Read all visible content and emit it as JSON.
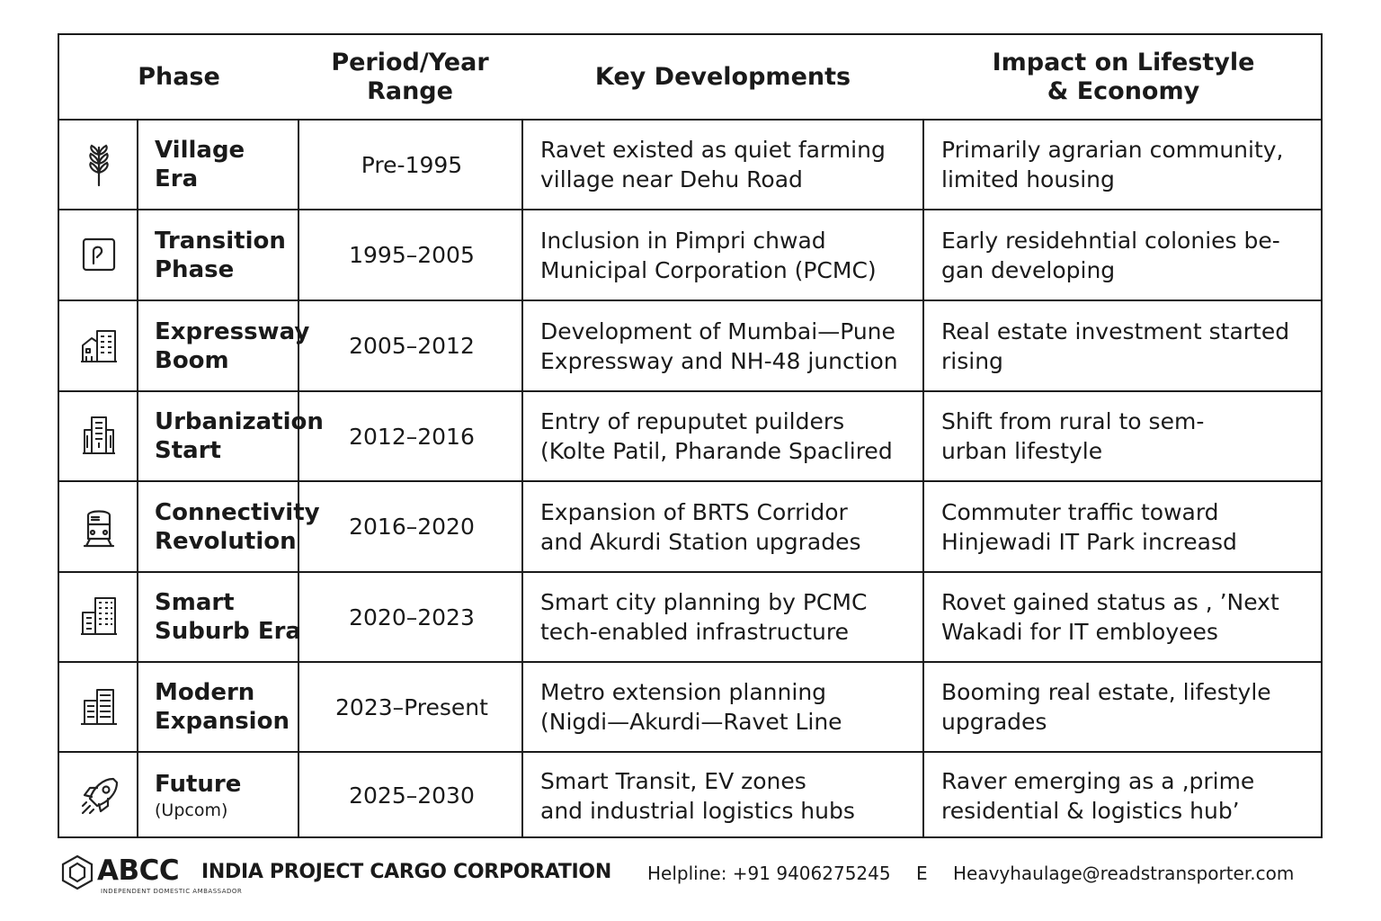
{
  "table": {
    "headers": {
      "phase": "Phase",
      "period": "Period/Year\nRange",
      "developments": "Key Developments",
      "impact": "Impact on Lifestyle\n& Economy"
    },
    "rows": [
      {
        "icon": "wheat-icon",
        "phase1": "Village",
        "phase2": "Era",
        "period": "Pre-1995",
        "dev1": "Ravet existed as quiet farming",
        "dev2": "village near Dehu Road",
        "imp1": "Primarily agrarian community,",
        "imp2": "limited housing"
      },
      {
        "icon": "document-icon",
        "phase1": "Transition",
        "phase2": "Phase",
        "period": "1995–2005",
        "dev1": "Inclusion in Pimpri chwad",
        "dev2": "Municipal Corporation (PCMC)",
        "imp1": "Early residehntial colonies be-",
        "imp2": "gan developing"
      },
      {
        "icon": "buildings-icon",
        "phase1": "Expressway",
        "phase2": "Boom",
        "period": "2005–2012",
        "dev1": "Development of Mumbai—Pune",
        "dev2": "Expressway and NH-48 junction",
        "imp1": "Real estate investment started",
        "imp2": "rising"
      },
      {
        "icon": "tower-icon",
        "phase1": "Urbanization",
        "phase2": "Start",
        "period": "2012–2016",
        "dev1": "Entry of repuputet puilders",
        "dev2": "(Kolte Patil, Pharande Spaclired",
        "imp1": "Shift from rural to sem-",
        "imp2": "urban lifestyle"
      },
      {
        "icon": "train-icon",
        "phase1": "Connectivity",
        "phase2": "Revolution",
        "period": "2016–2020",
        "dev1": "Expansion of BRTS Corridor",
        "dev2": "and Akurdi Station upgrades",
        "imp1": "Commuter traffic toward",
        "imp2": "Hinjewadi IT Park increasd"
      },
      {
        "icon": "city-icon",
        "phase1": "Smart",
        "phase2": "Suburb Era",
        "period": "2020–2023",
        "dev1": "Smart city planning by PCMC",
        "dev2": "tech-enabled infrastructure",
        "imp1": "Rovet gained status as , ’Next",
        "imp2": "Wakadi for IT embloyees"
      },
      {
        "icon": "office-building-icon",
        "phase1": "Modern",
        "phase2": "Expansion",
        "period": "2023–Present",
        "dev1": "Metro extension planning",
        "dev2": "(Nigdi—Akurdi—Ravet Line",
        "imp1": "Booming real estate, lifestyle",
        "imp2": "upgrades"
      },
      {
        "icon": "rocket-icon",
        "phase1": "Future",
        "phase2": "(Upcom)",
        "period": "2025–2030",
        "dev1": "Smart Transit, EV zones",
        "dev2": "and industrial logistics hubs",
        "imp1": "Raver emerging as a ‚prime",
        "imp2": "residential & logistics hub’"
      }
    ]
  },
  "footer": {
    "brand": "ABCC",
    "tagline": "INDEPENDENT DOMESTIC AMBASSADOR",
    "company": "INDIA PROJECT CARGO CORPORATION",
    "helpline": "Helpline: +91 9406275245",
    "separator": "E",
    "email": "Heavyhaulage@readstransporter.com"
  }
}
